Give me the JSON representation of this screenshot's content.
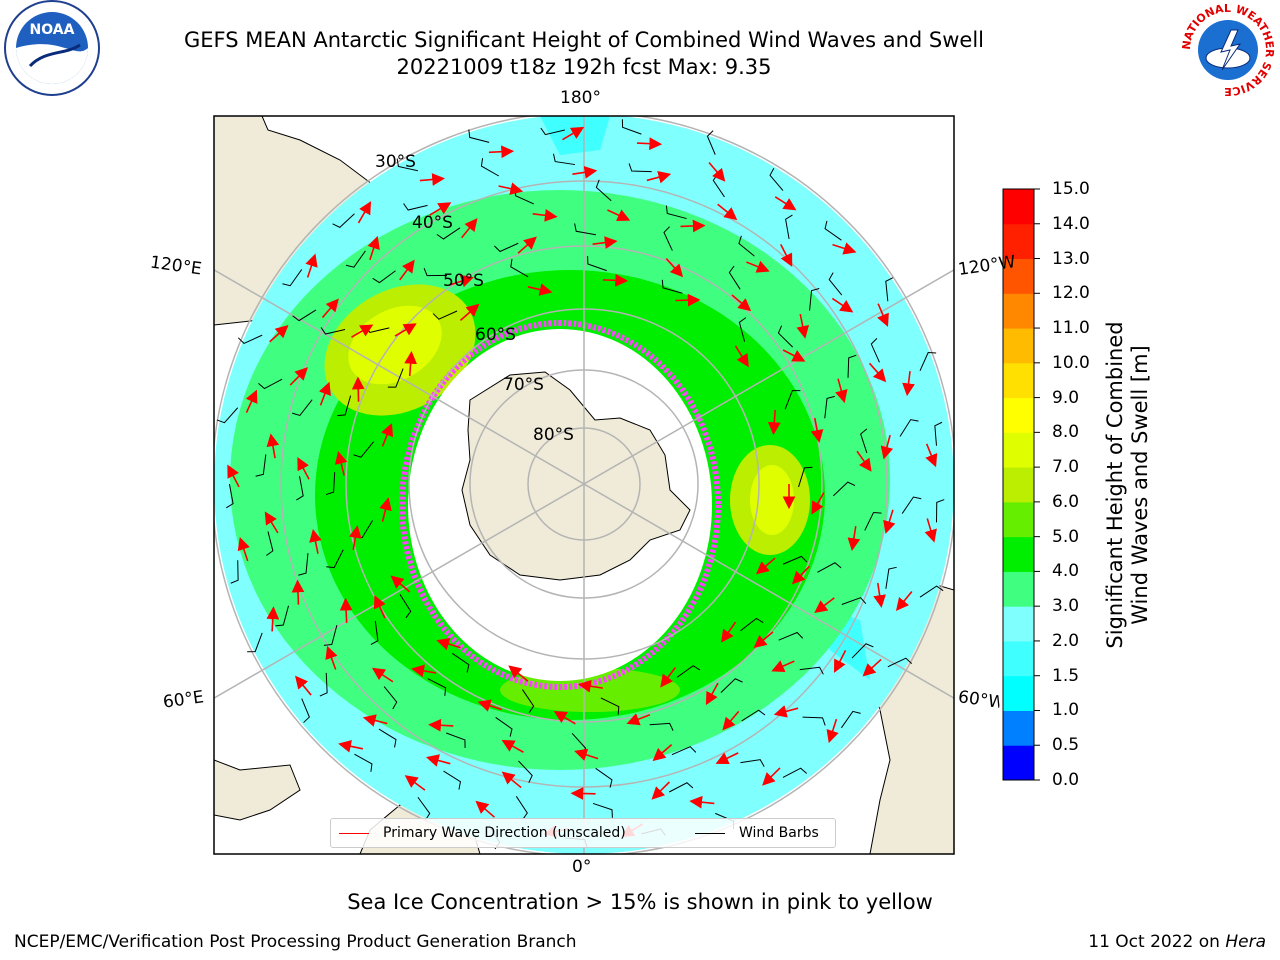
{
  "header": {
    "title_line1": "GEFS MEAN Antarctic Significant Height of Combined Wind Waves and Swell",
    "title_line2": "20221009 t18z 192h fcst   Max: 9.35",
    "logo_left_text": "NOAA",
    "logo_right_ring_text": "NATIONAL WEATHER SERVICE"
  },
  "map": {
    "projection": "south-polar-stereographic",
    "lon_labels": {
      "top": "180°",
      "bottom": "0°",
      "upper_left": "120°E",
      "upper_right": "120°W",
      "lower_left": "60°E",
      "lower_right": "60°W"
    },
    "lat_labels": [
      "30°S",
      "40°S",
      "50°S",
      "60°S",
      "70°S",
      "80°S"
    ],
    "colors": {
      "land": "#efebd8",
      "ice": "#ffffff",
      "coast": "#000000",
      "grid": "#b4b4b4",
      "arrow": "#ff0000",
      "barb": "#000000"
    }
  },
  "colorbar": {
    "title_line1": "Significant Height of Combined",
    "title_line2": "Wind Waves and Swell [m]",
    "ticks": [
      "0.0",
      "0.5",
      "1.0",
      "1.5",
      "2.0",
      "3.0",
      "4.0",
      "5.0",
      "6.0",
      "7.0",
      "8.0",
      "9.0",
      "10.0",
      "11.0",
      "12.0",
      "13.0",
      "14.0",
      "15.0"
    ],
    "colors": [
      "#0000ff",
      "#0080ff",
      "#00ffff",
      "#40ffff",
      "#80ffff",
      "#40ff80",
      "#00ee00",
      "#66ee00",
      "#bbee00",
      "#dfff00",
      "#ffff00",
      "#ffe000",
      "#ffbb00",
      "#ff8800",
      "#ff5500",
      "#ff2000",
      "#ff0000"
    ]
  },
  "legend": {
    "wave_label": "Primary Wave Direction (unscaled)",
    "barb_label": "Wind Barbs"
  },
  "caption": "Sea Ice Concentration > 15% is shown in pink to yellow",
  "footer": {
    "left": "NCEP/EMC/Verification Post Processing Product Generation Branch",
    "right_date": "11 Oct 2022 on ",
    "right_host": "Hera"
  }
}
